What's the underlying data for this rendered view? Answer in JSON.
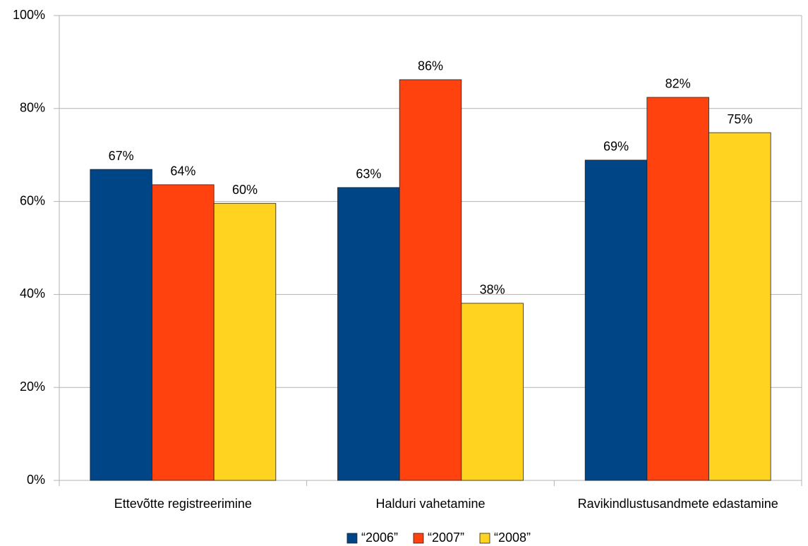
{
  "chart_data": {
    "type": "bar",
    "categories": [
      "Ettevõtte registreerimine",
      "Halduri vahetamine",
      "Ravikindlustusandmete edastamine"
    ],
    "series": [
      {
        "name": "“2006”",
        "color": "#004586",
        "values": [
          66.9,
          63.0,
          68.9
        ],
        "value_labels": [
          "67%",
          "63%",
          "69%"
        ]
      },
      {
        "name": "“2007”",
        "color": "#ff420e",
        "values": [
          63.6,
          86.2,
          82.4
        ],
        "value_labels": [
          "64%",
          "86%",
          "82%"
        ]
      },
      {
        "name": "“2008”",
        "color": "#ffd320",
        "values": [
          59.6,
          38.1,
          74.8
        ],
        "value_labels": [
          "60%",
          "38%",
          "75%"
        ]
      }
    ],
    "ylim": [
      0,
      100
    ],
    "yticks": [
      {
        "value": 0,
        "label": "0%"
      },
      {
        "value": 20,
        "label": "20%"
      },
      {
        "value": 40,
        "label": "40%"
      },
      {
        "value": 60,
        "label": "60%"
      },
      {
        "value": 80,
        "label": "80%"
      },
      {
        "value": 100,
        "label": "100%"
      }
    ],
    "grid": true,
    "legend": "bottom"
  }
}
